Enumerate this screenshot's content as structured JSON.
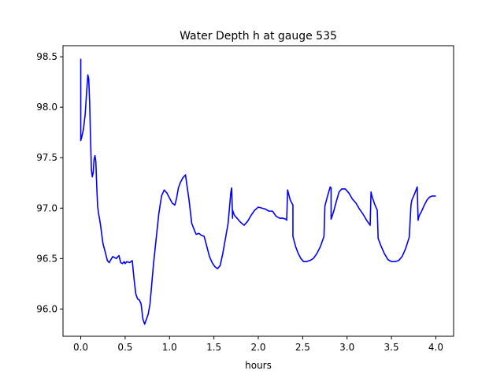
{
  "chart_data": {
    "type": "line",
    "title": "Water Depth h at gauge 535",
    "xlabel": "hours",
    "ylabel": "",
    "xlim": [
      -0.2,
      4.2
    ],
    "ylim": [
      95.73,
      98.61
    ],
    "xticks": [
      0.0,
      0.5,
      1.0,
      1.5,
      2.0,
      2.5,
      3.0,
      3.5,
      4.0
    ],
    "xtick_labels": [
      "0.0",
      "0.5",
      "1.0",
      "1.5",
      "2.0",
      "2.5",
      "3.0",
      "3.5",
      "4.0"
    ],
    "yticks": [
      96.0,
      96.5,
      97.0,
      97.5,
      98.0,
      98.5
    ],
    "ytick_labels": [
      "96.0",
      "96.5",
      "97.0",
      "97.5",
      "98.0",
      "98.5"
    ],
    "grid": false,
    "series": [
      {
        "name": "",
        "color": "#0000ff",
        "x": [
          0.0,
          0.0,
          0.01,
          0.03,
          0.05,
          0.07,
          0.08,
          0.09,
          0.1,
          0.11,
          0.12,
          0.13,
          0.14,
          0.15,
          0.16,
          0.17,
          0.18,
          0.19,
          0.2,
          0.22,
          0.25,
          0.28,
          0.3,
          0.32,
          0.34,
          0.36,
          0.38,
          0.4,
          0.43,
          0.45,
          0.47,
          0.49,
          0.5,
          0.52,
          0.55,
          0.58,
          0.6,
          0.62,
          0.64,
          0.66,
          0.68,
          0.7,
          0.72,
          0.74,
          0.76,
          0.78,
          0.8,
          0.82,
          0.85,
          0.88,
          0.91,
          0.94,
          0.97,
          1.0,
          1.03,
          1.06,
          1.08,
          1.1,
          1.12,
          1.15,
          1.18,
          1.2,
          1.22,
          1.25,
          1.28,
          1.3,
          1.33,
          1.36,
          1.39,
          1.42,
          1.45,
          1.48,
          1.51,
          1.54,
          1.57,
          1.6,
          1.63,
          1.66,
          1.69,
          1.7,
          1.71,
          1.71,
          1.73,
          1.76,
          1.8,
          1.84,
          1.88,
          1.92,
          1.96,
          2.0,
          2.04,
          2.08,
          2.12,
          2.16,
          2.2,
          2.24,
          2.28,
          2.31,
          2.32,
          2.33,
          2.36,
          2.39,
          2.39,
          2.42,
          2.45,
          2.48,
          2.51,
          2.54,
          2.58,
          2.62,
          2.66,
          2.7,
          2.74,
          2.75,
          2.78,
          2.81,
          2.82,
          2.82,
          2.85,
          2.88,
          2.91,
          2.94,
          2.98,
          3.02,
          3.06,
          3.1,
          3.14,
          3.18,
          3.22,
          3.26,
          3.27,
          3.28,
          3.31,
          3.34,
          3.35,
          3.38,
          3.42,
          3.46,
          3.5,
          3.54,
          3.58,
          3.62,
          3.66,
          3.7,
          3.72,
          3.73,
          3.76,
          3.79,
          3.8,
          3.81,
          3.84,
          3.87,
          3.9,
          3.93,
          3.96,
          4.0
        ],
        "y": [
          98.48,
          97.67,
          97.7,
          97.78,
          97.93,
          98.2,
          98.32,
          98.28,
          98.05,
          97.7,
          97.38,
          97.31,
          97.35,
          97.48,
          97.52,
          97.46,
          97.22,
          97.02,
          96.95,
          96.85,
          96.65,
          96.55,
          96.48,
          96.46,
          96.49,
          96.52,
          96.51,
          96.5,
          96.53,
          96.46,
          96.45,
          96.47,
          96.45,
          96.47,
          96.46,
          96.48,
          96.3,
          96.15,
          96.1,
          96.09,
          96.05,
          95.9,
          95.85,
          95.9,
          95.95,
          96.05,
          96.25,
          96.45,
          96.7,
          96.95,
          97.12,
          97.18,
          97.15,
          97.1,
          97.05,
          97.03,
          97.1,
          97.2,
          97.25,
          97.3,
          97.33,
          97.2,
          97.08,
          96.85,
          96.78,
          96.74,
          96.75,
          96.73,
          96.72,
          96.62,
          96.52,
          96.46,
          96.42,
          96.4,
          96.43,
          96.55,
          96.7,
          96.85,
          97.15,
          97.2,
          96.9,
          96.98,
          96.93,
          96.9,
          96.86,
          96.83,
          96.87,
          96.93,
          96.98,
          97.01,
          97.0,
          96.99,
          96.97,
          96.97,
          96.92,
          96.9,
          96.9,
          96.89,
          96.88,
          97.18,
          97.08,
          97.03,
          96.72,
          96.62,
          96.55,
          96.5,
          96.47,
          96.47,
          96.48,
          96.5,
          96.55,
          96.62,
          96.72,
          97.02,
          97.12,
          97.21,
          97.2,
          96.89,
          96.97,
          97.07,
          97.16,
          97.19,
          97.19,
          97.15,
          97.09,
          97.05,
          96.99,
          96.94,
          96.88,
          96.83,
          97.16,
          97.12,
          97.04,
          96.98,
          96.7,
          96.63,
          96.55,
          96.49,
          96.47,
          96.47,
          96.48,
          96.52,
          96.6,
          96.71,
          97.03,
          97.08,
          97.14,
          97.21,
          96.88,
          96.92,
          96.97,
          97.03,
          97.08,
          97.11,
          97.12,
          97.12
        ]
      }
    ]
  }
}
